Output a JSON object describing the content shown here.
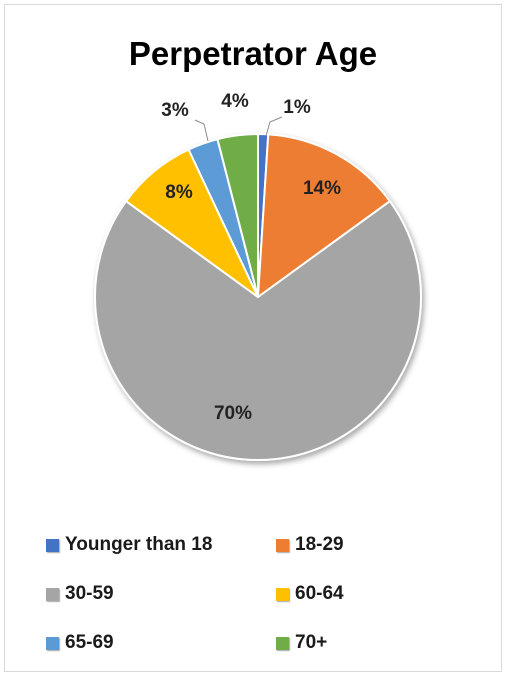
{
  "chart_data": {
    "type": "pie",
    "title": "Perpetrator Age",
    "categories": [
      "Younger than 18",
      "18-29",
      "30-59",
      "60-64",
      "65-69",
      "70+"
    ],
    "values": [
      1,
      14,
      70,
      8,
      3,
      4
    ],
    "labels": [
      "1%",
      "14%",
      "70%",
      "8%",
      "3%",
      "4%"
    ],
    "colors": [
      "#4472c4",
      "#ed7d31",
      "#a5a5a5",
      "#ffc000",
      "#5b9bd5",
      "#70ad47"
    ],
    "legend_position": "bottom"
  }
}
